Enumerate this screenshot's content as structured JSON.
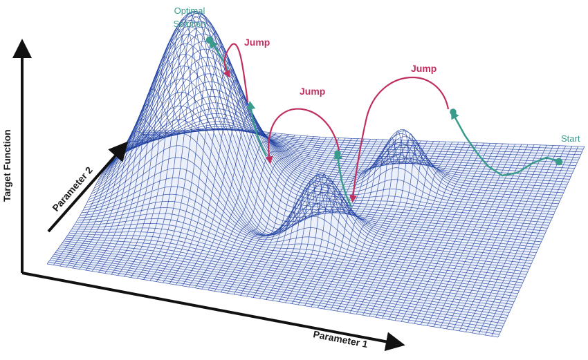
{
  "labels": {
    "optimal_line1": "Optimal",
    "optimal_line2": "Solution",
    "start": "Start",
    "jump_1": "Jump",
    "jump_2": "Jump",
    "jump_3": "Jump",
    "y_axis": "Target Function",
    "x_axis": "Parameter 1",
    "z_axis": "Parameter 2"
  },
  "colors": {
    "mesh": "#1f3fa0",
    "mesh_fill": "#c8d4f0",
    "jump": "#c0305e",
    "path": "#3a9b8c",
    "axis": "#111111"
  }
}
